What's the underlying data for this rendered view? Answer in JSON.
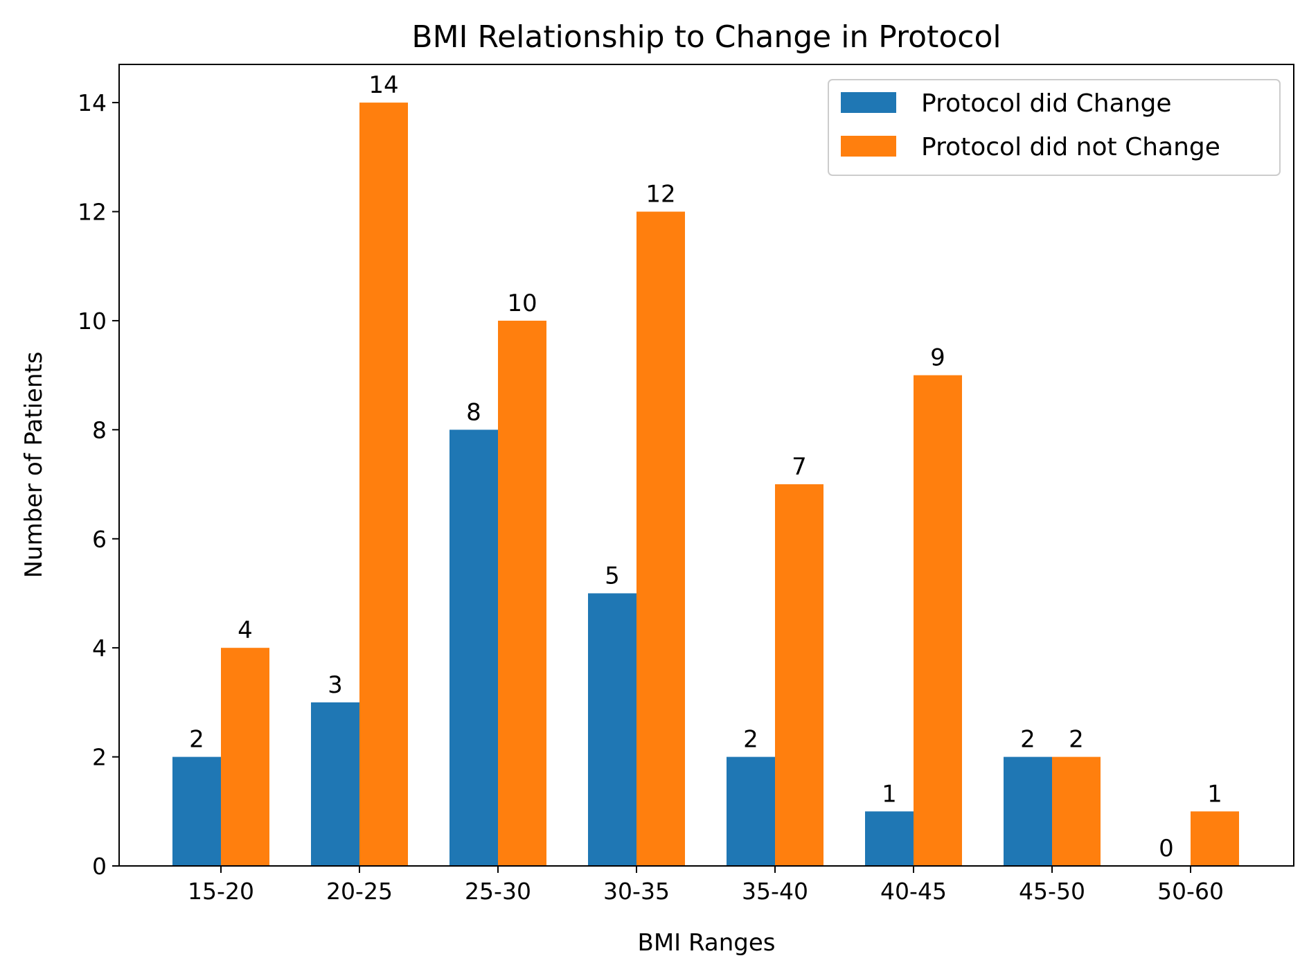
{
  "chart_data": {
    "type": "bar",
    "title": "BMI Relationship to Change in Protocol",
    "xlabel": "BMI Ranges",
    "ylabel": "Number of Patients",
    "categories": [
      "15-20",
      "20-25",
      "25-30",
      "30-35",
      "35-40",
      "40-45",
      "45-50",
      "50-60"
    ],
    "series": [
      {
        "name": "Protocol did Change",
        "color": "#1f77b4",
        "values": [
          2,
          3,
          8,
          5,
          2,
          1,
          2,
          0
        ]
      },
      {
        "name": "Protocol did not Change",
        "color": "#ff7f0e",
        "values": [
          4,
          14,
          10,
          12,
          7,
          9,
          2,
          1
        ]
      }
    ],
    "ylim": [
      0,
      14.7
    ],
    "yticks": [
      0,
      2,
      4,
      6,
      8,
      10,
      12,
      14
    ],
    "grid": false,
    "legend_position": "top-right"
  }
}
